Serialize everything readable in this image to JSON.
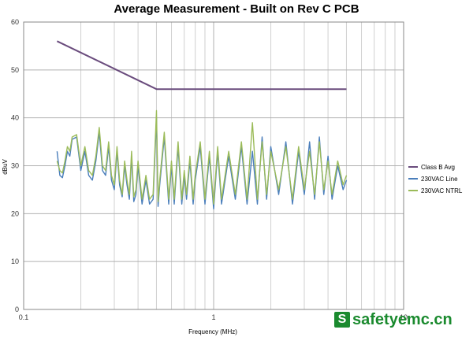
{
  "chart_data": {
    "type": "line",
    "title": "Average Measurement - Built on Rev C PCB",
    "xlabel": "Frequency (MHz)",
    "ylabel": "dBuV",
    "xscale": "log",
    "xlim": [
      0.1,
      10
    ],
    "ylim": [
      0,
      60
    ],
    "x_ticks": [
      "0.1",
      "1",
      "10"
    ],
    "y_ticks": [
      "0",
      "10",
      "20",
      "30",
      "40",
      "50",
      "60"
    ],
    "grid": "major and minor vertical (log), horizontal every 10",
    "legend_position": "right",
    "series": [
      {
        "name": "Class B Avg",
        "color": "#6a4c7d",
        "x": [
          0.15,
          0.5,
          5.0
        ],
        "y": [
          56,
          46,
          46
        ]
      },
      {
        "name": "230VAC Line",
        "color": "#4a7ebb",
        "x": [
          0.15,
          0.155,
          0.16,
          0.165,
          0.17,
          0.175,
          0.18,
          0.19,
          0.2,
          0.21,
          0.22,
          0.23,
          0.24,
          0.25,
          0.26,
          0.27,
          0.28,
          0.29,
          0.3,
          0.31,
          0.32,
          0.33,
          0.34,
          0.35,
          0.36,
          0.37,
          0.38,
          0.39,
          0.4,
          0.42,
          0.44,
          0.46,
          0.48,
          0.5,
          0.51,
          0.52,
          0.55,
          0.58,
          0.6,
          0.62,
          0.65,
          0.68,
          0.7,
          0.72,
          0.75,
          0.78,
          0.8,
          0.85,
          0.9,
          0.95,
          1.0,
          1.05,
          1.1,
          1.2,
          1.3,
          1.4,
          1.5,
          1.6,
          1.7,
          1.8,
          1.9,
          2.0,
          2.2,
          2.4,
          2.6,
          2.8,
          3.0,
          3.2,
          3.4,
          3.6,
          3.8,
          4.0,
          4.2,
          4.5,
          4.8,
          5.0
        ],
        "y": [
          33,
          28,
          27.5,
          30,
          33,
          32,
          35.5,
          36,
          29,
          33,
          28,
          27,
          31,
          37,
          29,
          28,
          34,
          27,
          25,
          33,
          26,
          23.5,
          30,
          26,
          23,
          32,
          22.5,
          24,
          30,
          22,
          27,
          22,
          23,
          40,
          21.5,
          26,
          36,
          22,
          30,
          22,
          34,
          22,
          28,
          23,
          31,
          22,
          27,
          34,
          22,
          32,
          21,
          33,
          22,
          32,
          23,
          34,
          22,
          33,
          22,
          36,
          23,
          34,
          24,
          35,
          22,
          33,
          24,
          35,
          23,
          36,
          24,
          32,
          23,
          30,
          25,
          27
        ]
      },
      {
        "name": "230VAC NTRL",
        "color": "#9bbb59",
        "x": [
          0.15,
          0.155,
          0.16,
          0.165,
          0.17,
          0.175,
          0.18,
          0.19,
          0.2,
          0.21,
          0.22,
          0.23,
          0.24,
          0.25,
          0.26,
          0.27,
          0.28,
          0.29,
          0.3,
          0.31,
          0.32,
          0.33,
          0.34,
          0.35,
          0.36,
          0.37,
          0.38,
          0.39,
          0.4,
          0.42,
          0.44,
          0.46,
          0.48,
          0.5,
          0.51,
          0.52,
          0.55,
          0.58,
          0.6,
          0.62,
          0.65,
          0.68,
          0.7,
          0.72,
          0.75,
          0.78,
          0.8,
          0.85,
          0.9,
          0.95,
          1.0,
          1.05,
          1.1,
          1.2,
          1.3,
          1.4,
          1.5,
          1.6,
          1.7,
          1.8,
          1.9,
          2.0,
          2.2,
          2.4,
          2.6,
          2.8,
          3.0,
          3.2,
          3.4,
          3.6,
          3.8,
          4.0,
          4.2,
          4.5,
          4.8,
          5.0
        ],
        "y": [
          31,
          29,
          28.5,
          31,
          34,
          33,
          36,
          36.5,
          30,
          34,
          29,
          28,
          32,
          38,
          30,
          29,
          35,
          28,
          26,
          34,
          27,
          24,
          31,
          27,
          24,
          33,
          23.5,
          25,
          31,
          23,
          28,
          23,
          24,
          41.5,
          22.5,
          27,
          37,
          23,
          31,
          23,
          35,
          23,
          29,
          24,
          32,
          23,
          28,
          35,
          23,
          33,
          22,
          34,
          23,
          33,
          24,
          35,
          23,
          39,
          23,
          35,
          24,
          33,
          25,
          34,
          23,
          34,
          25,
          33,
          24,
          35,
          25,
          31,
          24,
          31,
          26,
          28
        ]
      }
    ]
  },
  "watermark": {
    "logo_letter": "S",
    "text": "safetyemc.cn",
    "color": "#1a8a2e"
  }
}
